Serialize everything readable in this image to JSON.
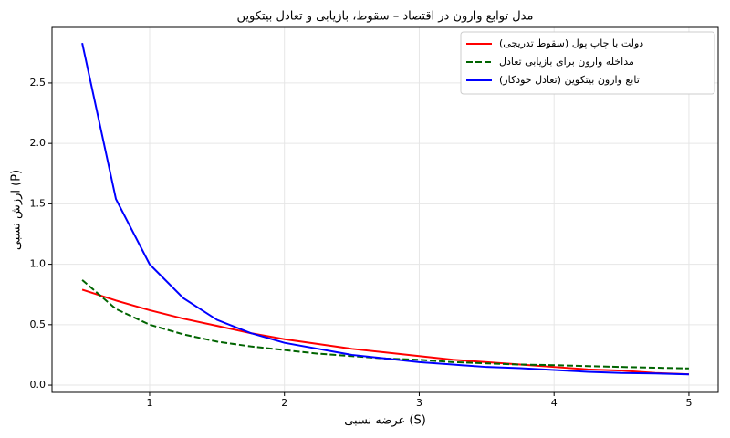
{
  "chart_data": {
    "type": "line",
    "title": "مدل توابع وارون در اقتصاد – سقوط، بازیابی و تعادل بیتکوین",
    "x_label": "عرضه نسبی (S)",
    "y_label": "ارزش نسبی (P)",
    "x": [
      0.5,
      0.75,
      1,
      1.25,
      1.5,
      1.75,
      2,
      2.25,
      2.5,
      2.75,
      3,
      3.25,
      3.5,
      3.75,
      4,
      4.25,
      4.5,
      4.75,
      5
    ],
    "series": [
      {
        "name": "دولت با چاپ پول (سقوط تدریجی)",
        "color": "#ff0000",
        "dash": "solid",
        "values": [
          0.79,
          0.7,
          0.62,
          0.55,
          0.49,
          0.43,
          0.38,
          0.34,
          0.3,
          0.27,
          0.24,
          0.21,
          0.19,
          0.17,
          0.15,
          0.13,
          0.12,
          0.1,
          0.09
        ]
      },
      {
        "name": "مداخله وارون برای بازیابی تعادل",
        "color": "#006400",
        "dash": "dashed",
        "values": [
          0.87,
          0.63,
          0.5,
          0.42,
          0.36,
          0.32,
          0.29,
          0.26,
          0.24,
          0.22,
          0.21,
          0.19,
          0.18,
          0.17,
          0.165,
          0.157,
          0.15,
          0.144,
          0.138
        ]
      },
      {
        "name": "تابع وارون بیتکوین (تعادل خودکار)",
        "color": "#0000ff",
        "dash": "solid",
        "values": [
          2.83,
          1.54,
          1.0,
          0.72,
          0.54,
          0.43,
          0.35,
          0.3,
          0.25,
          0.22,
          0.19,
          0.17,
          0.15,
          0.14,
          0.125,
          0.11,
          0.1,
          0.097,
          0.089
        ]
      }
    ],
    "xlim": [
      0.276,
      5.217
    ],
    "ylim": [
      -0.06,
      2.96
    ],
    "xticks": [
      1,
      2,
      3,
      4,
      5
    ],
    "yticks": [
      {
        "value": 0,
        "label": "0.0"
      },
      {
        "value": 0.5,
        "label": "0.5"
      },
      {
        "value": 1,
        "label": "1.0"
      },
      {
        "value": 1.5,
        "label": "1.5"
      },
      {
        "value": 2,
        "label": "2.0"
      },
      {
        "value": 2.5,
        "label": "2.5"
      }
    ],
    "grid": true,
    "legend": "upper right"
  }
}
